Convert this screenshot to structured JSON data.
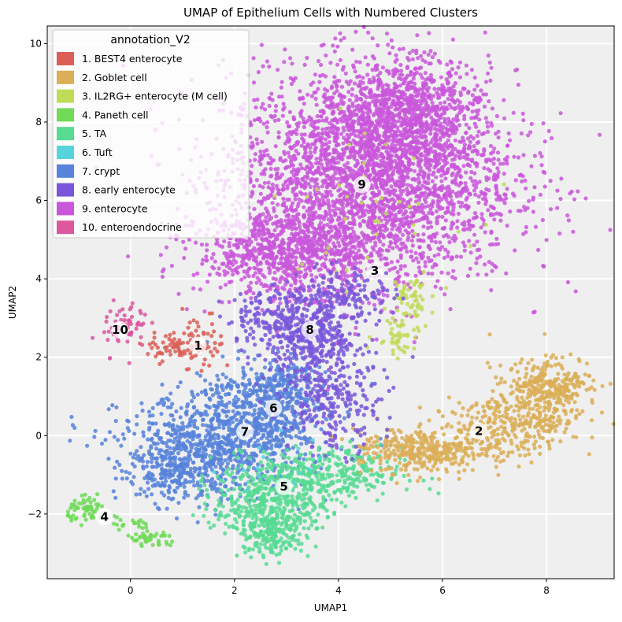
{
  "chart_data": {
    "type": "scatter",
    "title": "UMAP of Epithelium Cells with Numbered Clusters",
    "xlabel": "UMAP1",
    "ylabel": "UMAP2",
    "xlim": [
      -1.6,
      9.3
    ],
    "ylim": [
      -3.65,
      10.45
    ],
    "x_ticks": [
      0,
      2,
      4,
      6,
      8
    ],
    "y_ticks": [
      -2,
      0,
      2,
      4,
      6,
      8,
      10
    ],
    "grid": true,
    "legend": {
      "title": "annotation_V2",
      "placement": "top-left",
      "entries": [
        {
          "label": "1. BEST4 enterocyte",
          "color": "#db5f57"
        },
        {
          "label": "2. Goblet cell",
          "color": "#dbae57"
        },
        {
          "label": "3. IL2RG+ enterocyte (M cell)",
          "color": "#c0db57"
        },
        {
          "label": "4. Paneth cell",
          "color": "#6fdb57"
        },
        {
          "label": "5. TA",
          "color": "#57db93"
        },
        {
          "label": "6. Tuft",
          "color": "#57d3db"
        },
        {
          "label": "7. crypt",
          "color": "#5783db"
        },
        {
          "label": "8. early enterocyte",
          "color": "#7957db"
        },
        {
          "label": "9. enterocyte",
          "color": "#c957db"
        },
        {
          "label": "10. enteroendocrine",
          "color": "#db579e"
        }
      ]
    },
    "cluster_labels": [
      {
        "text": "1",
        "x": 1.3,
        "y": 2.3
      },
      {
        "text": "2",
        "x": 6.7,
        "y": 0.12
      },
      {
        "text": "3",
        "x": 4.7,
        "y": 4.2
      },
      {
        "text": "4",
        "x": -0.5,
        "y": -2.07
      },
      {
        "text": "5",
        "x": 2.95,
        "y": -1.3
      },
      {
        "text": "6",
        "x": 2.75,
        "y": 0.7
      },
      {
        "text": "7",
        "x": 2.2,
        "y": 0.1
      },
      {
        "text": "8",
        "x": 3.45,
        "y": 2.7
      },
      {
        "text": "9",
        "x": 4.45,
        "y": 6.4
      },
      {
        "text": "10",
        "x": -0.2,
        "y": 2.7
      }
    ],
    "series": [
      {
        "name": "1. BEST4 enterocyte",
        "cluster": 1,
        "color": "#db5f57",
        "n": 110,
        "blobs": [
          [
            0.9,
            2.25,
            0.3,
            0.18,
            70
          ],
          [
            1.4,
            2.35,
            0.2,
            0.4,
            40
          ]
        ]
      },
      {
        "name": "2. Goblet cell",
        "cluster": 2,
        "color": "#dbae57",
        "n": 950,
        "blobs": [
          [
            5.8,
            -0.4,
            0.45,
            0.28,
            220
          ],
          [
            6.9,
            0.1,
            0.55,
            0.4,
            220
          ],
          [
            7.8,
            0.8,
            0.45,
            0.5,
            260
          ],
          [
            8.2,
            1.4,
            0.4,
            0.3,
            150
          ],
          [
            4.9,
            -0.3,
            0.35,
            0.3,
            100
          ]
        ]
      },
      {
        "name": "3. IL2RG+ enterocyte (M cell)",
        "cluster": 3,
        "color": "#c0db57",
        "n": 140,
        "blobs": [
          [
            5.4,
            3.4,
            0.18,
            0.4,
            60
          ],
          [
            5.1,
            2.6,
            0.2,
            0.3,
            40
          ],
          [
            4.5,
            5.8,
            0.9,
            1.0,
            40
          ]
        ]
      },
      {
        "name": "4. Paneth cell",
        "cluster": 4,
        "color": "#6fdb57",
        "n": 120,
        "blobs": [
          [
            -0.8,
            -1.9,
            0.2,
            0.15,
            60
          ],
          [
            0.4,
            -2.65,
            0.25,
            0.12,
            40
          ],
          [
            -0.1,
            -2.3,
            0.3,
            0.15,
            20
          ]
        ]
      },
      {
        "name": "5. TA",
        "cluster": 5,
        "color": "#57db93",
        "n": 900,
        "blobs": [
          [
            2.7,
            -1.7,
            0.55,
            0.5,
            450
          ],
          [
            2.7,
            -2.55,
            0.3,
            0.3,
            150
          ],
          [
            3.8,
            -1.0,
            0.7,
            0.35,
            300
          ]
        ]
      },
      {
        "name": "6. Tuft",
        "cluster": 6,
        "color": "#57d3db",
        "n": 15,
        "blobs": [
          [
            3.0,
            -0.5,
            0.6,
            0.5,
            15
          ]
        ]
      },
      {
        "name": "7. crypt",
        "cluster": 7,
        "color": "#5783db",
        "n": 1500,
        "blobs": [
          [
            1.6,
            -0.3,
            0.9,
            0.65,
            700
          ],
          [
            2.5,
            0.6,
            0.65,
            0.6,
            450
          ],
          [
            0.9,
            -0.9,
            0.5,
            0.4,
            200
          ],
          [
            2.9,
            1.3,
            0.4,
            0.35,
            150
          ]
        ]
      },
      {
        "name": "8. early enterocyte",
        "cluster": 8,
        "color": "#7957db",
        "n": 900,
        "blobs": [
          [
            3.5,
            2.6,
            0.45,
            0.65,
            400
          ],
          [
            3.9,
            0.9,
            0.45,
            0.65,
            250
          ],
          [
            2.8,
            3.0,
            0.5,
            0.35,
            150
          ],
          [
            4.3,
            3.6,
            0.4,
            0.35,
            100
          ]
        ]
      },
      {
        "name": "9. enterocyte",
        "cluster": 9,
        "color": "#c957db",
        "n": 4500,
        "blobs": [
          [
            4.6,
            6.6,
            1.4,
            1.35,
            3000
          ],
          [
            3.1,
            4.7,
            0.9,
            0.55,
            800
          ],
          [
            5.3,
            8.3,
            0.65,
            0.7,
            700
          ]
        ]
      },
      {
        "name": "10. enteroendocrine",
        "cluster": 10,
        "color": "#db579e",
        "n": 60,
        "blobs": [
          [
            -0.1,
            2.8,
            0.22,
            0.35,
            60
          ]
        ]
      }
    ]
  }
}
